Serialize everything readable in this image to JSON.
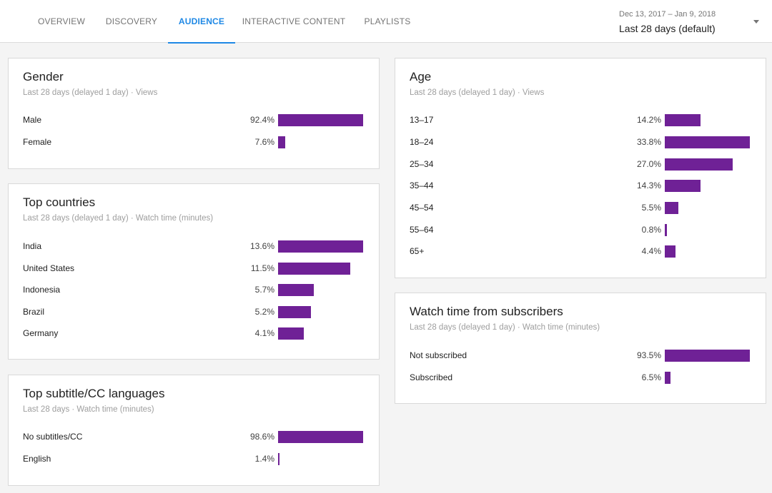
{
  "tabs": [
    {
      "label": "OVERVIEW"
    },
    {
      "label": "DISCOVERY"
    },
    {
      "label": "AUDIENCE"
    },
    {
      "label": "INTERACTIVE CONTENT"
    },
    {
      "label": "PLAYLISTS"
    }
  ],
  "active_tab": "AUDIENCE",
  "date_range": {
    "dates": "Dec 13, 2017 – Jan 9, 2018",
    "label": "Last 28 days (default)"
  },
  "colors": {
    "accent": "#1e88e5",
    "bar": "#6f2196"
  },
  "cards": {
    "gender": {
      "title": "Gender",
      "subtitle": "Last 28 days (delayed 1 day) · Views",
      "rows": [
        {
          "label": "Male",
          "pct": "92.4%",
          "value": 92.4
        },
        {
          "label": "Female",
          "pct": "7.6%",
          "value": 7.6
        }
      ]
    },
    "countries": {
      "title": "Top countries",
      "subtitle": "Last 28 days (delayed 1 day) · Watch time (minutes)",
      "rows": [
        {
          "label": "India",
          "pct": "13.6%",
          "value": 13.6
        },
        {
          "label": "United States",
          "pct": "11.5%",
          "value": 11.5
        },
        {
          "label": "Indonesia",
          "pct": "5.7%",
          "value": 5.7
        },
        {
          "label": "Brazil",
          "pct": "5.2%",
          "value": 5.2
        },
        {
          "label": "Germany",
          "pct": "4.1%",
          "value": 4.1
        }
      ]
    },
    "subtitles": {
      "title": "Top subtitle/CC languages",
      "subtitle": "Last 28 days · Watch time (minutes)",
      "rows": [
        {
          "label": "No subtitles/CC",
          "pct": "98.6%",
          "value": 98.6
        },
        {
          "label": "English",
          "pct": "1.4%",
          "value": 1.4
        }
      ]
    },
    "age": {
      "title": "Age",
      "subtitle": "Last 28 days (delayed 1 day) · Views",
      "rows": [
        {
          "label": "13–17",
          "pct": "14.2%",
          "value": 14.2
        },
        {
          "label": "18–24",
          "pct": "33.8%",
          "value": 33.8
        },
        {
          "label": "25–34",
          "pct": "27.0%",
          "value": 27.0
        },
        {
          "label": "35–44",
          "pct": "14.3%",
          "value": 14.3
        },
        {
          "label": "45–54",
          "pct": "5.5%",
          "value": 5.5
        },
        {
          "label": "55–64",
          "pct": "0.8%",
          "value": 0.8
        },
        {
          "label": "65+",
          "pct": "4.4%",
          "value": 4.4
        }
      ]
    },
    "subscribers": {
      "title": "Watch time from subscribers",
      "subtitle": "Last 28 days (delayed 1 day) · Watch time (minutes)",
      "rows": [
        {
          "label": "Not subscribed",
          "pct": "93.5%",
          "value": 93.5
        },
        {
          "label": "Subscribed",
          "pct": "6.5%",
          "value": 6.5
        }
      ]
    }
  }
}
